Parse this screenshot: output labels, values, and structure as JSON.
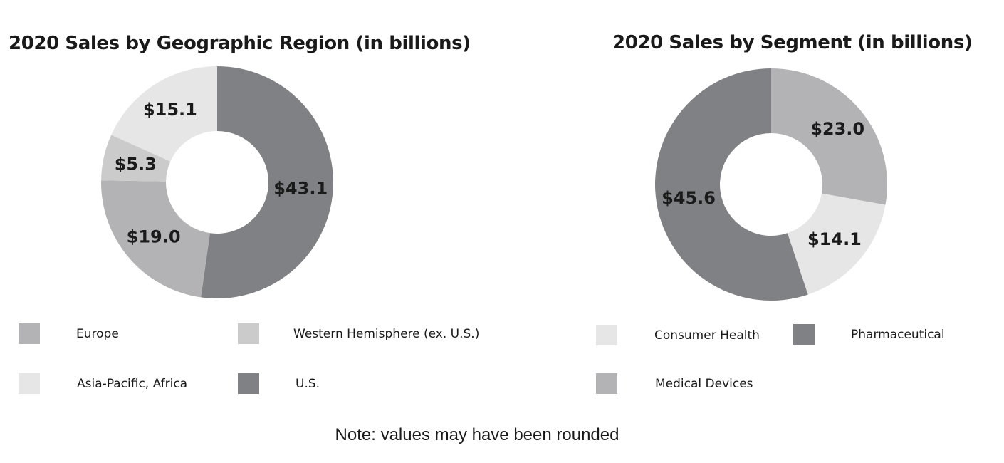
{
  "chart_data": [
    {
      "type": "pie",
      "title": "2020 Sales by Geographic Region (in billions)",
      "categories": [
        "U.S.",
        "Europe",
        "Western Hemisphere (ex. U.S.)",
        "Asia-Pacific, Africa"
      ],
      "values": [
        43.1,
        19.0,
        5.3,
        15.1
      ],
      "data_labels": [
        "$43.1",
        "$19.0",
        "$5.3",
        "$15.1"
      ],
      "colors": [
        "#808184",
        "#b3b3b5",
        "#cbcbcc",
        "#e6e6e7"
      ],
      "legend": [
        {
          "label": "Europe",
          "color": "#b3b3b5"
        },
        {
          "label": "Western Hemisphere (ex. U.S.)",
          "color": "#cbcbcc"
        },
        {
          "label": "Asia-Pacific, Africa",
          "color": "#e6e6e7"
        },
        {
          "label": "U.S.",
          "color": "#808184"
        }
      ],
      "legend_position": "bottom"
    },
    {
      "type": "pie",
      "title": "2020 Sales by Segment (in billions)",
      "categories": [
        "Medical Devices",
        "Consumer Health",
        "Pharmaceutical"
      ],
      "values": [
        23.0,
        14.1,
        45.6
      ],
      "data_labels": [
        "$23.0",
        "$14.1",
        "$45.6"
      ],
      "colors": [
        "#b3b3b5",
        "#e6e6e7",
        "#808184"
      ],
      "legend": [
        {
          "label": "Consumer Health",
          "color": "#e6e6e7"
        },
        {
          "label": "Pharmaceutical",
          "color": "#808184"
        },
        {
          "label": "Medical Devices",
          "color": "#b3b3b5"
        }
      ],
      "legend_position": "bottom"
    }
  ],
  "note": "Note: values may have been rounded"
}
